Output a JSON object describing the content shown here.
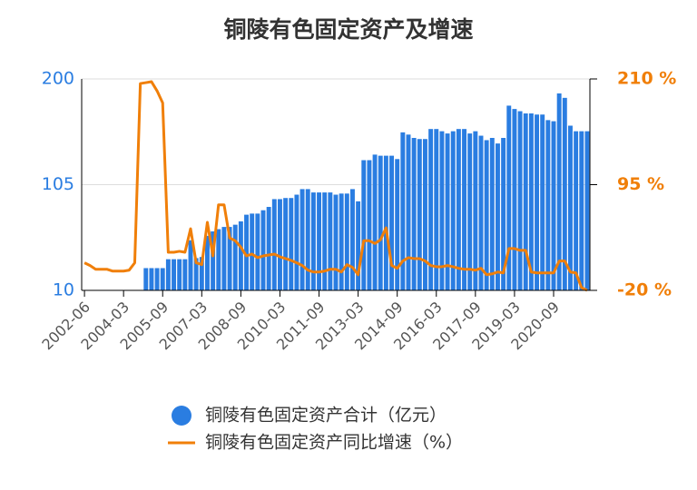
{
  "chart_data": {
    "type": "bar",
    "title": "铜陵有色固定资产及增速",
    "categories": [
      "2002-06",
      null,
      null,
      null,
      null,
      null,
      null,
      "2004-03",
      null,
      null,
      null,
      null,
      null,
      null,
      "2005-09",
      null,
      null,
      null,
      null,
      null,
      null,
      "2007-03",
      null,
      null,
      null,
      null,
      null,
      null,
      "2008-09",
      null,
      null,
      null,
      null,
      null,
      null,
      "2010-03",
      null,
      null,
      null,
      null,
      null,
      null,
      "2011-09",
      null,
      null,
      null,
      null,
      null,
      null,
      "2013-03",
      null,
      null,
      null,
      null,
      null,
      null,
      "2014-09",
      null,
      null,
      null,
      null,
      null,
      null,
      "2016-03",
      null,
      null,
      null,
      null,
      null,
      null,
      "2017-09",
      null,
      null,
      null,
      null,
      null,
      null,
      "2019-03",
      null,
      null,
      null,
      null,
      null,
      null,
      "2020-09",
      null,
      null,
      null,
      null,
      null,
      null
    ],
    "series": [
      {
        "name": "铜陵有色固定资产合计（亿元）",
        "type": "bar",
        "color": "#2a7de1",
        "values": [
          null,
          null,
          null,
          null,
          null,
          null,
          null,
          null,
          null,
          null,
          null,
          30,
          30,
          30,
          30,
          38,
          38,
          38,
          38,
          55,
          39,
          40,
          59,
          63,
          65,
          67,
          67,
          69,
          72,
          78,
          79,
          79,
          82,
          85,
          92,
          92,
          93,
          93,
          96,
          101,
          101,
          98,
          98,
          98,
          98,
          96,
          97,
          97,
          101,
          90,
          127,
          127,
          132,
          131,
          131,
          131,
          128,
          152,
          150,
          147,
          146,
          146,
          155,
          155,
          153,
          151,
          153,
          155,
          155,
          151,
          153,
          149,
          145,
          147,
          142,
          147,
          176,
          173,
          171,
          169,
          169,
          168,
          168,
          163,
          162,
          187,
          183,
          158,
          153,
          153,
          153
        ]
      },
      {
        "name": "铜陵有色固定资产同比增速（%）",
        "type": "line",
        "axis": "y2",
        "color": "#f07f09",
        "values": [
          10,
          7,
          3,
          3,
          3,
          1,
          1,
          1,
          2,
          10,
          205,
          206,
          207,
          197,
          184,
          21.5,
          21.5,
          22.5,
          21.5,
          47,
          10,
          8,
          54,
          17.5,
          73,
          73,
          37,
          34,
          27,
          17.5,
          19.5,
          15.6,
          17.5,
          18.5,
          19.5,
          16.5,
          14.6,
          12.6,
          10,
          7,
          2,
          0,
          0,
          1,
          3,
          3,
          0,
          8,
          5,
          -3,
          34,
          34,
          31,
          35,
          48,
          7,
          4,
          12,
          15.6,
          14.6,
          14.6,
          12,
          7,
          5.7,
          5.7,
          7,
          5.7,
          4,
          3,
          3,
          2,
          4,
          -3,
          -2,
          0,
          -1,
          25.5,
          25.5,
          23.5,
          23.5,
          0,
          -1,
          -1,
          -1,
          -1,
          12,
          12,
          0,
          -1,
          -17,
          -20
        ]
      }
    ],
    "ylim": [
      10,
      200
    ],
    "yticks": [
      10,
      105,
      200
    ],
    "y2lim": [
      -20,
      210
    ],
    "y2ticks": [
      {
        "value": -20,
        "label": "-20 %"
      },
      {
        "value": 95,
        "label": "95 %"
      },
      {
        "value": 210,
        "label": "210 %"
      }
    ],
    "grid": true,
    "legend": "bottom"
  }
}
